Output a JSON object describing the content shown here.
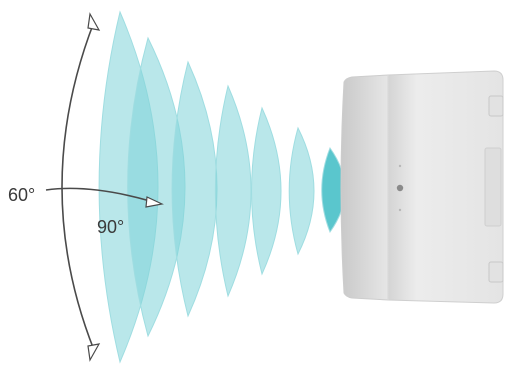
{
  "diagram": {
    "coverage_angles": {
      "vertical": "60°",
      "horizontal": "90°"
    },
    "colors": {
      "wave_fill": "#7fd3d8",
      "wave_stroke": "#9fdde1",
      "wave_core": "#48c0c8",
      "speaker_body": "#e9e9e9",
      "speaker_edge": "#cfcfcf",
      "arrow": "#3a3a3a"
    },
    "wave_count": 7
  }
}
